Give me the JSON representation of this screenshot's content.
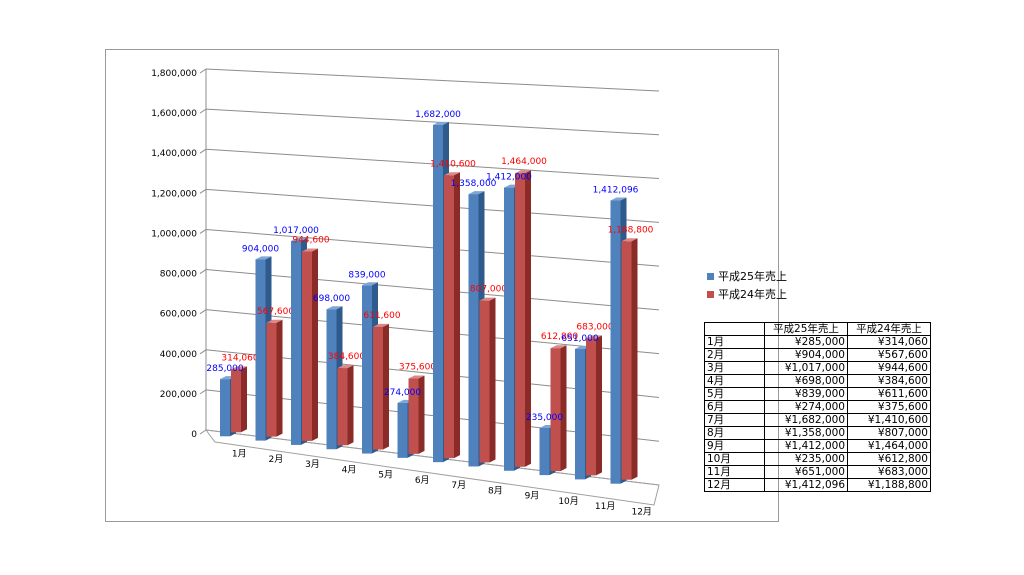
{
  "chart_data": {
    "type": "bar",
    "categories": [
      "1月",
      "2月",
      "3月",
      "4月",
      "5月",
      "6月",
      "7月",
      "8月",
      "9月",
      "10月",
      "11月",
      "12月"
    ],
    "series": [
      {
        "name": "平成25年売上",
        "color": "#4f81bd",
        "label_color": "#0000ff",
        "values": [
          285000,
          904000,
          1017000,
          698000,
          839000,
          274000,
          1682000,
          1358000,
          1412000,
          235000,
          651000,
          1412096
        ],
        "labels": [
          "285,000",
          "904,000",
          "1,017,000",
          "698,000",
          "839,000",
          "274,000",
          "1,682,000",
          "1,358,000",
          "1,412,000",
          "235,000",
          "651,000",
          "1,412,096"
        ]
      },
      {
        "name": "平成24年売上",
        "color": "#c0504d",
        "label_color": "#ff0000",
        "values": [
          314060,
          567600,
          944600,
          384600,
          611600,
          375600,
          1410600,
          807000,
          1464000,
          612800,
          683000,
          1188800
        ],
        "labels": [
          "314,060",
          "567,600",
          "944,600",
          "384,600",
          "611,600",
          "375,600",
          "1,410,600",
          "807,000",
          "1,464,000",
          "612,800",
          "683,000",
          "1,188,800"
        ]
      }
    ],
    "yticks": [
      "0",
      "200,000",
      "400,000",
      "600,000",
      "800,000",
      "1,000,000",
      "1,200,000",
      "1,400,000",
      "1,600,000",
      "1,800,000"
    ],
    "ylim": [
      0,
      1800000
    ],
    "grid": true,
    "legend_position": "right",
    "style": "3d-clustered-column"
  },
  "table": {
    "headers": [
      "",
      "平成25年売上",
      "平成24年売上"
    ],
    "rows": [
      [
        "1月",
        "¥285,000",
        "¥314,060"
      ],
      [
        "2月",
        "¥904,000",
        "¥567,600"
      ],
      [
        "3月",
        "¥1,017,000",
        "¥944,600"
      ],
      [
        "4月",
        "¥698,000",
        "¥384,600"
      ],
      [
        "5月",
        "¥839,000",
        "¥611,600"
      ],
      [
        "6月",
        "¥274,000",
        "¥375,600"
      ],
      [
        "7月",
        "¥1,682,000",
        "¥1,410,600"
      ],
      [
        "8月",
        "¥1,358,000",
        "¥807,000"
      ],
      [
        "9月",
        "¥1,412,000",
        "¥1,464,000"
      ],
      [
        "10月",
        "¥235,000",
        "¥612,800"
      ],
      [
        "11月",
        "¥651,000",
        "¥683,000"
      ],
      [
        "12月",
        "¥1,412,096",
        "¥1,188,800"
      ]
    ]
  }
}
